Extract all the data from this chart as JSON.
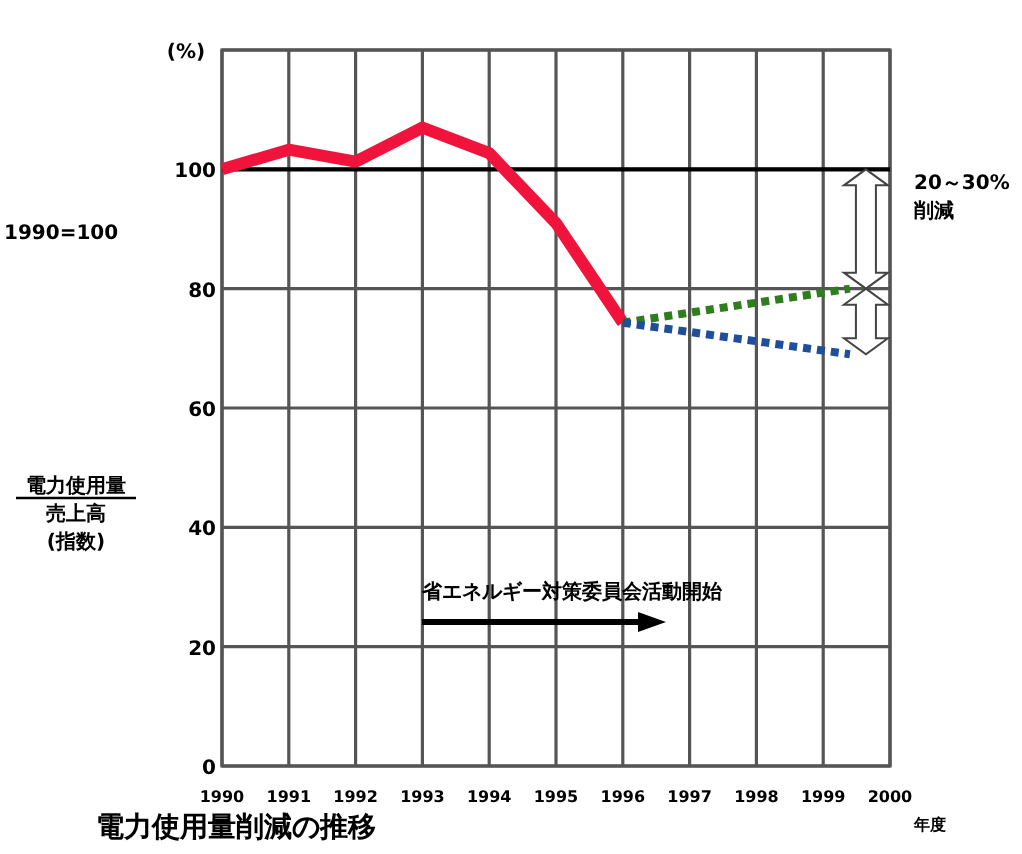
{
  "chart_data": {
    "type": "line",
    "title": "電力使用量削減の推移",
    "ylabel": "電力使用量",
    "xlabel": "年度",
    "x": [
      1990,
      1991,
      1992,
      1993,
      1994,
      1995,
      1996,
      1999.4
    ],
    "series": [
      {
        "color": "#f0143c",
        "values": [
          100,
          103.3,
          101.3,
          107,
          102.7,
          91,
          74.3,
          null
        ],
        "line_style": "solid"
      },
      {
        "color": "#2e7d1e",
        "values": [
          null,
          null,
          null,
          null,
          null,
          null,
          74.3,
          80
        ],
        "line_style": "dotted"
      },
      {
        "color": "#1f4f9a",
        "values": [
          null,
          null,
          null,
          null,
          null,
          null,
          74.3,
          69
        ],
        "line_style": "dotted"
      }
    ],
    "xlim": [
      1990,
      2000
    ],
    "xticks": [
      1990,
      1991,
      1992,
      1993,
      1994,
      1995,
      1996,
      1997,
      1998,
      1999,
      2000
    ],
    "ylim": [
      0,
      120
    ],
    "yticks": [
      0,
      20,
      40,
      60,
      80,
      100,
      {
        "value": 120,
        "label": null
      }
    ],
    "ref_lines": [
      {
        "axis": "y",
        "value": 100,
        "color": "#000000"
      }
    ],
    "annotations": [
      "(%)",
      "1990=100",
      "20～30%\n削減",
      "売上高",
      "(指数)",
      "省エネルギー対策委員会活動開始"
    ],
    "grid": true
  }
}
